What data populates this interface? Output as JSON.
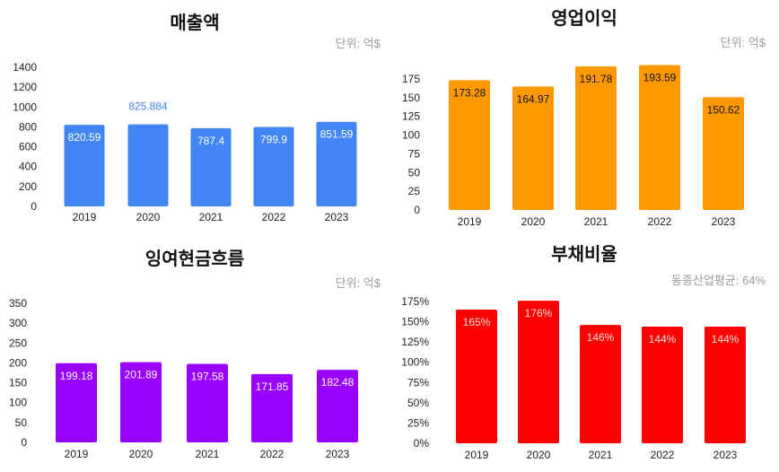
{
  "chart_data": [
    {
      "type": "bar",
      "title": "매출액",
      "unit_note": "단위: 억$",
      "categories": [
        "2019",
        "2020",
        "2021",
        "2022",
        "2023"
      ],
      "values": [
        820.59,
        825.884,
        787.4,
        799.9,
        851.59
      ],
      "data_labels": [
        "820.59",
        "825.884",
        "787.4",
        "799.9",
        "851.59"
      ],
      "label_outside": [
        false,
        true,
        false,
        false,
        false
      ],
      "ylim": [
        0,
        1400
      ],
      "yticks": [
        "0",
        "200",
        "400",
        "600",
        "800",
        "1000",
        "1200",
        "1400"
      ],
      "color": "#4285f4",
      "label_color": "#ffffff",
      "outside_label_color": "#4285f4",
      "grid": false
    },
    {
      "type": "bar",
      "title": "영업이익",
      "unit_note": "단위: 억$",
      "categories": [
        "2019",
        "2020",
        "2021",
        "2022",
        "2023"
      ],
      "values": [
        173.28,
        164.97,
        191.78,
        193.59,
        150.62
      ],
      "data_labels": [
        "173.28",
        "164.97",
        "191.78",
        "193.59",
        "150.62"
      ],
      "label_outside": [
        false,
        false,
        false,
        false,
        false
      ],
      "ylim": [
        0,
        175
      ],
      "yticks": [
        "0",
        "25",
        "50",
        "75",
        "100",
        "125",
        "150",
        "175"
      ],
      "color": "#ff9900",
      "label_color": "#111111",
      "grid": false
    },
    {
      "type": "bar",
      "title": "잉여현금흐름",
      "unit_note": "단위: 억$",
      "categories": [
        "2019",
        "2020",
        "2021",
        "2022",
        "2023"
      ],
      "values": [
        199.18,
        201.89,
        197.58,
        171.85,
        182.48
      ],
      "data_labels": [
        "199.18",
        "201.89",
        "197.58",
        "171.85",
        "182.48"
      ],
      "label_outside": [
        false,
        false,
        false,
        false,
        false
      ],
      "ylim": [
        0,
        350
      ],
      "yticks": [
        "0",
        "50",
        "100",
        "150",
        "200",
        "250",
        "300",
        "350"
      ],
      "color": "#9900ff",
      "label_color": "#ffffff",
      "grid": false
    },
    {
      "type": "bar",
      "title": "부채비율",
      "unit_note": "동종산업평균: 64%",
      "categories": [
        "2019",
        "2020",
        "2021",
        "2022",
        "2023"
      ],
      "values": [
        165,
        176,
        146,
        144,
        144
      ],
      "data_labels": [
        "165%",
        "176%",
        "146%",
        "144%",
        "144%"
      ],
      "label_outside": [
        false,
        false,
        false,
        false,
        false
      ],
      "ylim": [
        0,
        175
      ],
      "yticks": [
        "0%",
        "25%",
        "50%",
        "75%",
        "100%",
        "125%",
        "150%",
        "175%"
      ],
      "color": "#ff0000",
      "label_color": "#ffdddd",
      "grid": false
    }
  ]
}
